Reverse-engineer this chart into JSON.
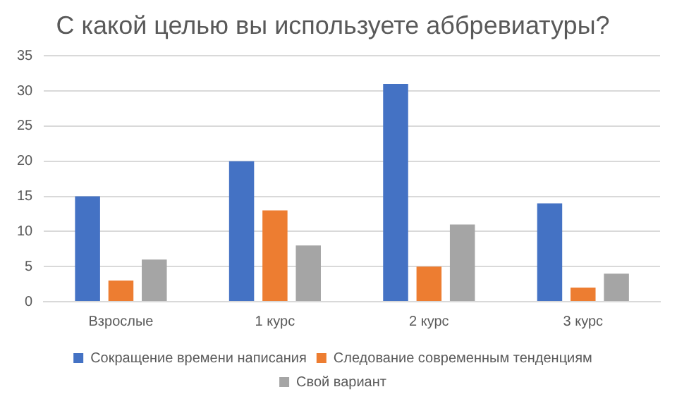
{
  "chart_data": {
    "type": "bar",
    "title": "С какой целью вы используете аббревиатуры?",
    "categories": [
      "Взрослые",
      "1 курс",
      "2 курс",
      "3 курс"
    ],
    "series": [
      {
        "name": "Сокращение времени написания",
        "color": "#4472c4",
        "values": [
          15,
          20,
          31,
          14
        ]
      },
      {
        "name": "Следование современным тенденциям",
        "color": "#ed7d31",
        "values": [
          3,
          13,
          5,
          2
        ]
      },
      {
        "name": "Свой вариант",
        "color": "#a5a5a5",
        "values": [
          6,
          8,
          11,
          4
        ]
      }
    ],
    "ylim": [
      0,
      35
    ],
    "yticks": [
      0,
      5,
      10,
      15,
      20,
      25,
      30,
      35
    ],
    "grid": "y",
    "legend": "bottom"
  }
}
